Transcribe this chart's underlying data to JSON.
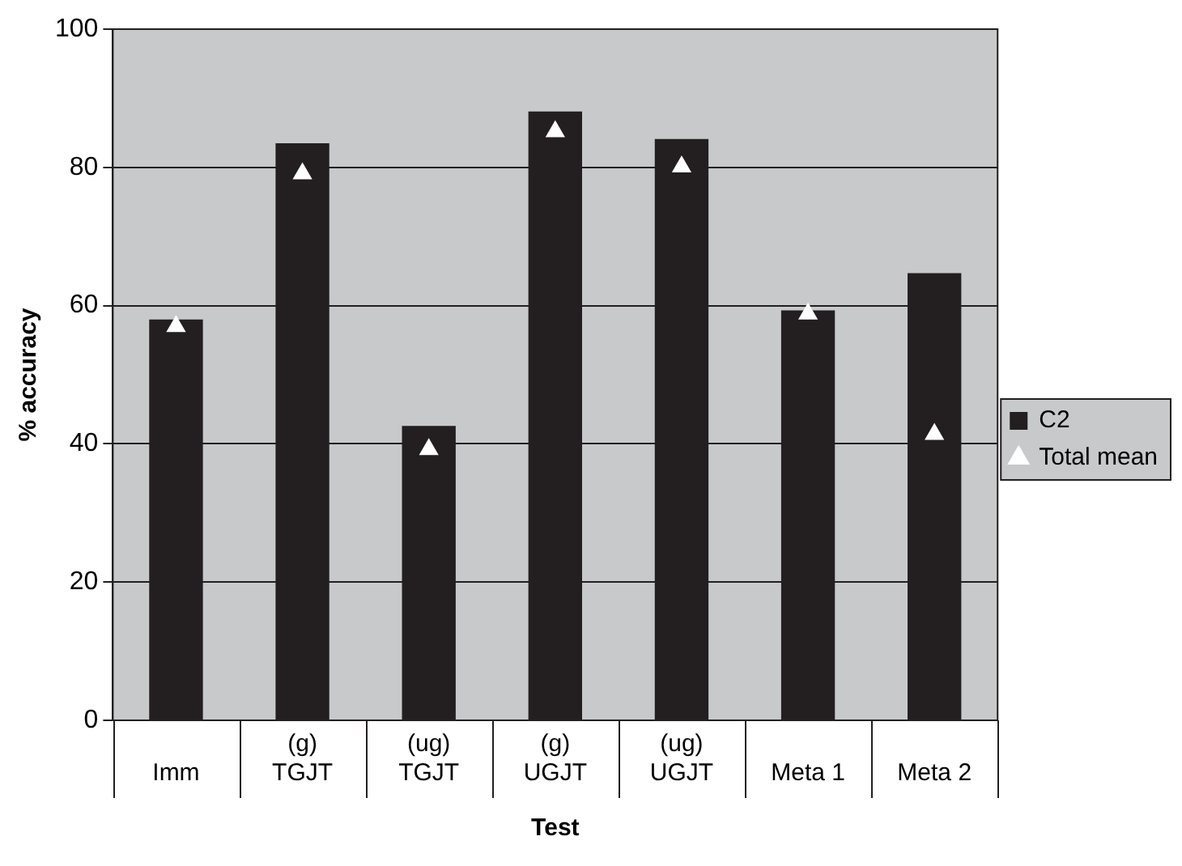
{
  "chart_data": {
    "type": "bar",
    "xlabel": "Test",
    "ylabel": "% accuracy",
    "categories": [
      "Imm",
      "(g)\nTGJT",
      "(ug)\nTGJT",
      "(g)\nUGJT",
      "(ug)\nUGJT",
      "Meta 1",
      "Meta 2"
    ],
    "series": [
      {
        "name": "C2",
        "color": "#231f20",
        "values": [
          58,
          83.5,
          42.6,
          88.1,
          84.1,
          59.3,
          64.7
        ]
      },
      {
        "name": "Total mean",
        "type": "scatter",
        "marker": "triangle",
        "color": "#ffffff",
        "values": [
          57,
          79.1,
          39.2,
          85.2,
          80.1,
          58.8,
          41.4
        ]
      }
    ],
    "ylim": [
      0,
      100
    ],
    "yticks": [
      0,
      20,
      40,
      60,
      80,
      100
    ],
    "grid": "y",
    "legend": "right"
  }
}
